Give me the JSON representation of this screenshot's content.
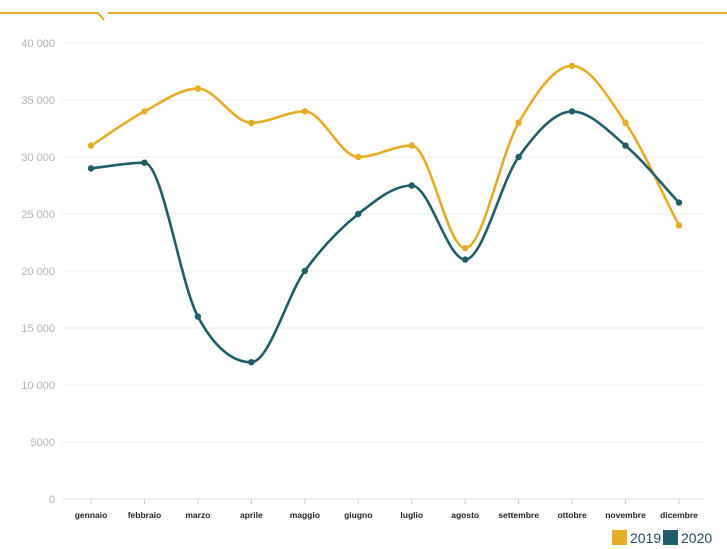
{
  "colors": {
    "accent": "#e5ad27",
    "series_2019": "#e5ad27",
    "series_2020": "#1f5d69",
    "grid": "#ececec",
    "tick_text": "#b3b3b3"
  },
  "chart_data": {
    "type": "line",
    "categories": [
      "gennaio",
      "febbraio",
      "marzo",
      "aprile",
      "maggio",
      "giugno",
      "luglio",
      "agosto",
      "settembre",
      "ottobre",
      "novembre",
      "dicembre"
    ],
    "series": [
      {
        "name": "2019",
        "values": [
          31000,
          34000,
          36000,
          33000,
          34000,
          30000,
          31000,
          22000,
          33000,
          38000,
          33000,
          24000
        ]
      },
      {
        "name": "2020",
        "values": [
          29000,
          29500,
          16000,
          12000,
          20000,
          25000,
          27500,
          21000,
          30000,
          34000,
          31000,
          26000
        ]
      }
    ],
    "ylim": [
      0,
      40000
    ],
    "yticks": [
      0,
      5000,
      10000,
      15000,
      20000,
      25000,
      30000,
      35000,
      40000
    ],
    "ytick_labels": [
      "0",
      "5000",
      "10 000",
      "15 000",
      "20 000",
      "25 000",
      "30 000",
      "35 000",
      "40 000"
    ],
    "grid": true,
    "smooth": true,
    "markers": true,
    "legend": {
      "position": "bottom-right",
      "items": [
        "2019",
        "2020"
      ]
    },
    "title": "",
    "xlabel": "",
    "ylabel": ""
  }
}
